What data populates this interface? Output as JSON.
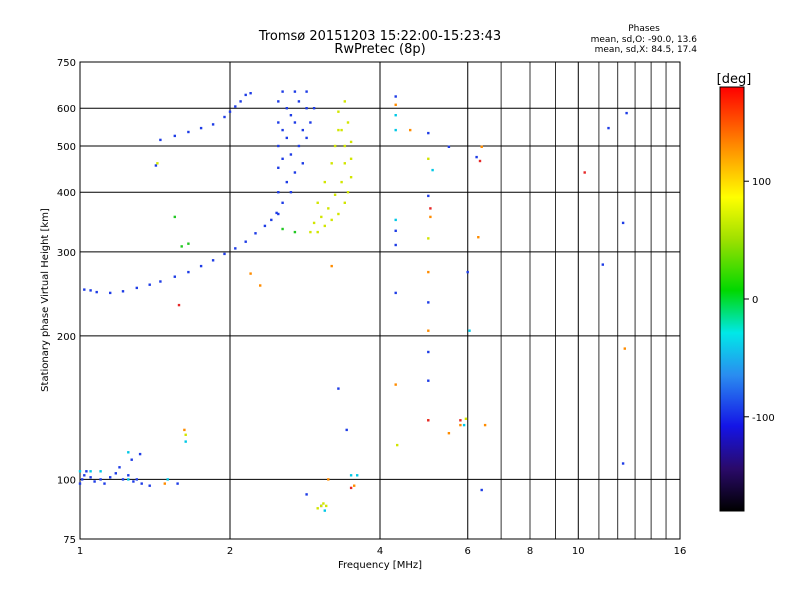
{
  "chart_data": {
    "type": "scatter",
    "title": "Tromsø 20151203 15:22:00-15:23:43",
    "subtitle": "RwPretec (8p)",
    "stats": {
      "heading": "Phases",
      "line1": "mean, sd,O: -90.0, 13.6",
      "line2": "mean, sd,X:  84.5, 17.4"
    },
    "xlabel": "Frequency [MHz]",
    "ylabel": "Stationary phase Virtual Height [km]",
    "x_scale": "log",
    "y_scale": "log",
    "xlim": [
      1,
      16
    ],
    "ylim": [
      75,
      750
    ],
    "x_ticks": [
      1,
      2,
      4,
      6,
      8,
      10,
      16
    ],
    "x_tick_labels": [
      "1",
      "2",
      "4",
      "6",
      "8",
      "10",
      "16"
    ],
    "y_ticks": [
      75,
      100,
      200,
      300,
      400,
      500,
      600,
      750
    ],
    "y_tick_labels": [
      "75",
      "100",
      "200",
      "300",
      "400",
      "500",
      "600",
      "750"
    ],
    "grid": true,
    "colorbar": {
      "label": "[deg]",
      "range": [
        -180,
        180
      ],
      "ticks": [
        100,
        0,
        -100
      ],
      "tick_labels": [
        "100",
        "0",
        "-100"
      ]
    },
    "series": [
      {
        "points": [
          [
            1.0,
            98
          ],
          [
            1.01,
            100
          ],
          [
            1.02,
            102
          ],
          [
            1.03,
            104
          ],
          [
            1.05,
            101
          ],
          [
            1.07,
            99
          ],
          [
            1.1,
            100
          ],
          [
            1.12,
            98
          ],
          [
            1.15,
            101
          ],
          [
            1.18,
            103
          ],
          [
            1.22,
            100
          ],
          [
            1.25,
            102
          ],
          [
            1.28,
            99
          ],
          [
            1.3,
            100
          ],
          [
            1.33,
            98
          ],
          [
            1.2,
            106
          ],
          [
            1.27,
            110
          ],
          [
            1.32,
            113
          ],
          [
            1.38,
            97
          ],
          [
            1.57,
            98
          ],
          [
            1.02,
            250
          ],
          [
            1.05,
            249
          ],
          [
            1.08,
            247
          ],
          [
            1.15,
            246
          ],
          [
            1.22,
            248
          ],
          [
            1.3,
            252
          ],
          [
            1.38,
            256
          ],
          [
            1.45,
            260
          ],
          [
            1.55,
            266
          ],
          [
            1.65,
            272
          ],
          [
            1.75,
            280
          ],
          [
            1.85,
            288
          ],
          [
            1.95,
            297
          ],
          [
            2.05,
            305
          ],
          [
            2.15,
            315
          ],
          [
            2.25,
            328
          ],
          [
            2.35,
            340
          ],
          [
            2.42,
            350
          ],
          [
            2.48,
            362
          ],
          [
            1.45,
            515
          ],
          [
            1.55,
            525
          ],
          [
            1.65,
            535
          ],
          [
            1.75,
            545
          ],
          [
            1.85,
            555
          ],
          [
            1.95,
            575
          ],
          [
            2.0,
            590
          ],
          [
            2.05,
            605
          ],
          [
            2.1,
            620
          ],
          [
            2.15,
            640
          ],
          [
            2.2,
            645
          ],
          [
            1.42,
            455
          ],
          [
            2.5,
            360
          ],
          [
            2.5,
            400
          ],
          [
            2.5,
            450
          ],
          [
            2.5,
            500
          ],
          [
            2.5,
            560
          ],
          [
            2.5,
            620
          ],
          [
            2.55,
            380
          ],
          [
            2.55,
            470
          ],
          [
            2.55,
            540
          ],
          [
            2.6,
            420
          ],
          [
            2.6,
            520
          ],
          [
            2.6,
            600
          ],
          [
            2.65,
            400
          ],
          [
            2.65,
            480
          ],
          [
            2.65,
            580
          ],
          [
            2.7,
            440
          ],
          [
            2.7,
            560
          ],
          [
            2.75,
            500
          ],
          [
            2.75,
            620
          ],
          [
            2.8,
            460
          ],
          [
            2.8,
            540
          ],
          [
            2.85,
            520
          ],
          [
            2.85,
            600
          ],
          [
            2.9,
            560
          ],
          [
            2.95,
            600
          ],
          [
            2.55,
            650
          ],
          [
            2.7,
            650
          ],
          [
            2.85,
            650
          ],
          [
            3.3,
            155
          ],
          [
            3.43,
            127
          ],
          [
            3.05,
            88
          ],
          [
            2.85,
            93
          ],
          [
            4.3,
            246
          ],
          [
            4.3,
            310
          ],
          [
            4.3,
            332
          ],
          [
            5.0,
            235
          ],
          [
            5.0,
            185
          ],
          [
            5.0,
            161
          ],
          [
            5.0,
            532
          ],
          [
            5.0,
            393
          ],
          [
            5.5,
            498
          ],
          [
            6.0,
            272
          ],
          [
            6.25,
            474
          ],
          [
            6.4,
            95
          ],
          [
            12.3,
            345
          ],
          [
            12.5,
            586
          ],
          [
            11.5,
            545
          ],
          [
            11.2,
            282
          ],
          [
            12.3,
            108
          ],
          [
            4.3,
            635
          ]
        ]
      },
      {
        "points": [
          [
            1.05,
            104
          ],
          [
            1.1,
            104
          ],
          [
            1.25,
            114
          ],
          [
            1.25,
            100
          ],
          [
            1.63,
            120
          ],
          [
            3.1,
            86
          ],
          [
            3.5,
            102
          ],
          [
            3.6,
            102
          ],
          [
            4.3,
            580
          ],
          [
            4.3,
            540
          ],
          [
            5.1,
            445
          ],
          [
            6.05,
            205
          ],
          [
            5.9,
            130
          ],
          [
            1.5,
            100
          ],
          [
            4.3,
            350
          ],
          [
            1.0,
            104
          ]
        ]
      },
      {
        "points": [
          [
            1.55,
            355
          ],
          [
            1.6,
            308
          ],
          [
            1.65,
            312
          ],
          [
            2.55,
            335
          ],
          [
            2.7,
            330
          ]
        ]
      },
      {
        "points": [
          [
            2.9,
            330
          ],
          [
            3.0,
            330
          ],
          [
            3.1,
            340
          ],
          [
            3.2,
            350
          ],
          [
            3.3,
            360
          ],
          [
            3.4,
            380
          ],
          [
            3.45,
            400
          ],
          [
            3.5,
            430
          ],
          [
            3.5,
            470
          ],
          [
            3.5,
            510
          ],
          [
            3.45,
            560
          ],
          [
            3.4,
            620
          ],
          [
            2.95,
            345
          ],
          [
            3.05,
            355
          ],
          [
            3.15,
            370
          ],
          [
            3.25,
            395
          ],
          [
            3.35,
            420
          ],
          [
            3.4,
            460
          ],
          [
            3.4,
            500
          ],
          [
            3.35,
            540
          ],
          [
            3.3,
            590
          ],
          [
            3.0,
            380
          ],
          [
            3.1,
            420
          ],
          [
            3.2,
            460
          ],
          [
            3.25,
            500
          ],
          [
            3.3,
            540
          ],
          [
            3.05,
            88
          ],
          [
            3.08,
            89
          ],
          [
            3.12,
            88
          ],
          [
            3.0,
            87
          ],
          [
            5.0,
            470
          ],
          [
            5.0,
            320
          ],
          [
            1.43,
            460
          ],
          [
            1.63,
            124
          ],
          [
            5.95,
            134
          ],
          [
            4.33,
            118
          ]
        ]
      },
      {
        "points": [
          [
            3.2,
            280
          ],
          [
            3.15,
            100
          ],
          [
            4.3,
            610
          ],
          [
            4.6,
            540
          ],
          [
            5.0,
            272
          ],
          [
            5.5,
            125
          ],
          [
            6.3,
            322
          ],
          [
            6.5,
            130
          ],
          [
            4.3,
            158
          ],
          [
            5.0,
            133
          ],
          [
            5.8,
            130
          ],
          [
            2.3,
            255
          ],
          [
            2.2,
            270
          ],
          [
            5.05,
            355
          ],
          [
            12.4,
            188
          ],
          [
            6.4,
            498
          ],
          [
            1.62,
            127
          ],
          [
            1.48,
            98
          ],
          [
            3.55,
            97
          ],
          [
            5.0,
            205
          ]
        ]
      },
      {
        "points": [
          [
            1.58,
            232
          ],
          [
            5.05,
            370
          ],
          [
            3.5,
            96
          ],
          [
            6.35,
            465
          ],
          [
            5.0,
            133
          ],
          [
            10.3,
            440
          ],
          [
            5.8,
            133
          ]
        ]
      }
    ]
  }
}
